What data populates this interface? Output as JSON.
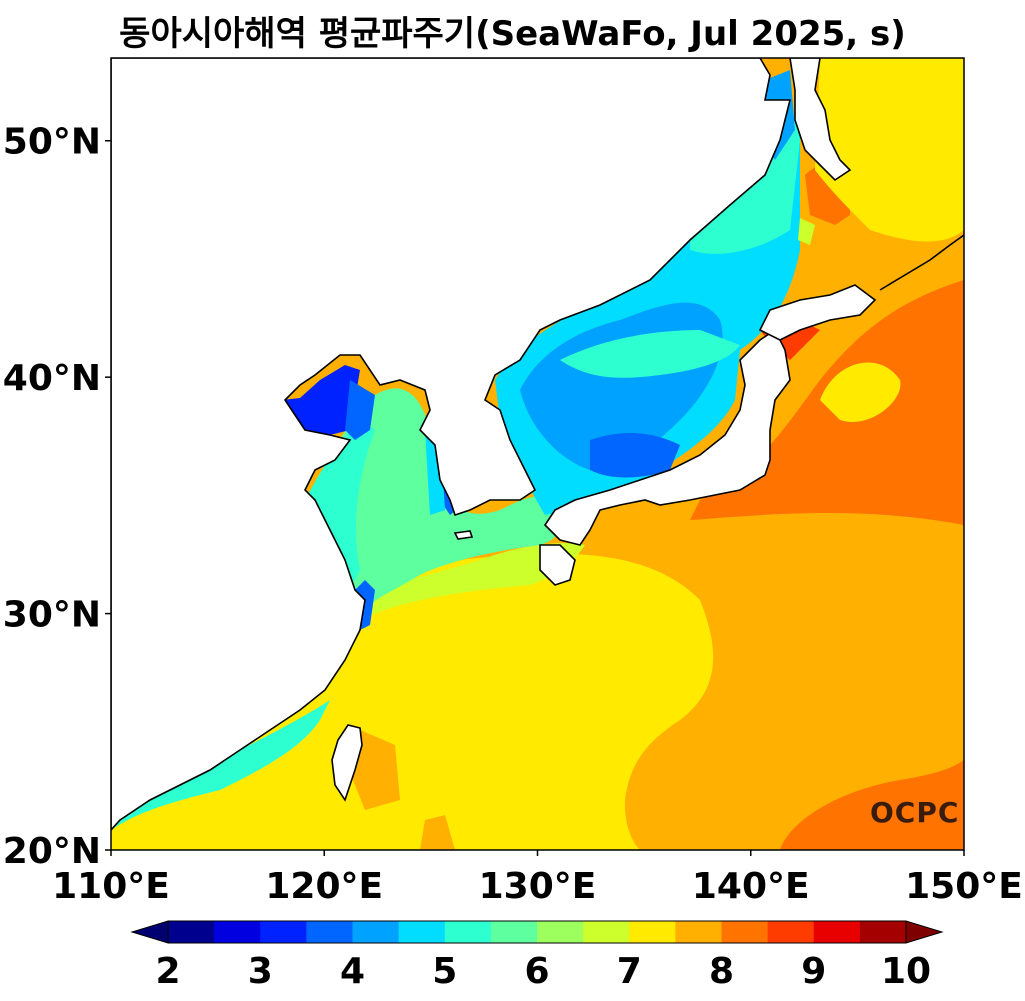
{
  "title": "동아시아해역 평균파주기(SeaWaFo, Jul 2025, s)",
  "map": {
    "lon_range": [
      110,
      150
    ],
    "lat_range": [
      20,
      53.5
    ],
    "lon_ticks": [
      "110°E",
      "120°E",
      "130°E",
      "140°E",
      "150°E"
    ],
    "lat_ticks": [
      "20°N",
      "30°N",
      "40°N",
      "50°N"
    ],
    "variable": "mean wave period",
    "unit": "s"
  },
  "colorbar": {
    "ticks": [
      "2",
      "3",
      "4",
      "5",
      "6",
      "7",
      "8",
      "9",
      "10"
    ],
    "levels": [
      2,
      2.5,
      3,
      3.5,
      4,
      4.5,
      5,
      5.5,
      6,
      6.5,
      7,
      7.5,
      8,
      8.5,
      9,
      9.5,
      10
    ],
    "colors": [
      "#00008f",
      "#0000e0",
      "#0022ff",
      "#0066ff",
      "#00a2ff",
      "#00ddff",
      "#2dffd0",
      "#5dff9e",
      "#9cff5e",
      "#ccff2b",
      "#ffea00",
      "#ffb000",
      "#ff7400",
      "#ff3c00",
      "#e80000",
      "#a40000"
    ],
    "under_color": "#000070",
    "over_color": "#7f0000"
  },
  "logo": "OCPC"
}
